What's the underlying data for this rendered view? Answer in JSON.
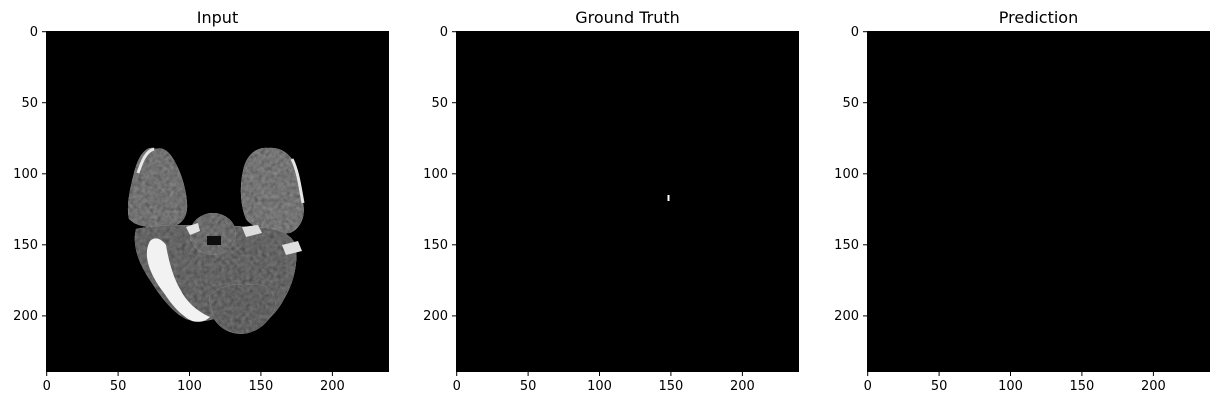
{
  "figure": {
    "background": "#ffffff",
    "image_size": [
      240,
      240
    ],
    "panels": [
      {
        "id": "input",
        "title": "Input",
        "content": "brain-mri-slice",
        "ticks": {
          "x": [
            "0",
            "50",
            "100",
            "150",
            "200"
          ],
          "y": [
            "0",
            "50",
            "100",
            "150",
            "200"
          ]
        }
      },
      {
        "id": "ground-truth",
        "title": "Ground Truth",
        "content": "mask",
        "mask_pixels": [
          [
            149,
            116
          ],
          [
            149,
            117
          ]
        ],
        "ticks": {
          "x": [
            "0",
            "50",
            "100",
            "150",
            "200"
          ],
          "y": [
            "0",
            "50",
            "100",
            "150",
            "200"
          ]
        }
      },
      {
        "id": "prediction",
        "title": "Prediction",
        "content": "empty-mask",
        "ticks": {
          "x": [
            "0",
            "50",
            "100",
            "150",
            "200"
          ],
          "y": [
            "0",
            "50",
            "100",
            "150",
            "200"
          ]
        }
      }
    ]
  }
}
